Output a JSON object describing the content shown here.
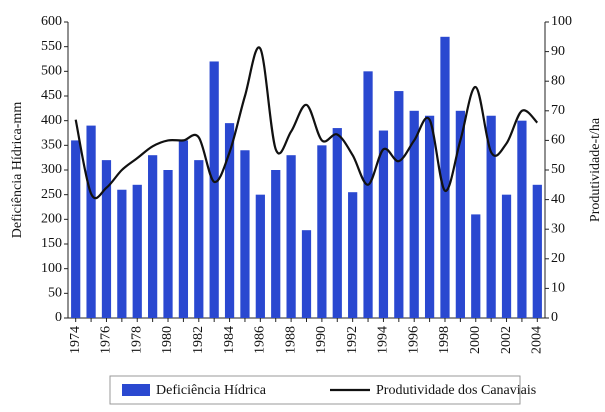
{
  "chart_data": {
    "type": "bar_line",
    "ylabel": "Deficiência Hídrica-mm",
    "y2label": "Produtividade-t/ha",
    "categories": [
      "1974",
      null,
      "1976",
      null,
      "1978",
      null,
      "1980",
      null,
      "1982",
      null,
      "1984",
      null,
      "1986",
      null,
      "1988",
      null,
      "1990",
      null,
      "1992",
      null,
      "1994",
      null,
      "1996",
      null,
      "1998",
      null,
      "2000",
      null,
      "2002",
      null,
      "2004"
    ],
    "series": [
      {
        "name": "Deficiência Hídrica",
        "type": "bar",
        "axis": "y",
        "color": "#2a48d0",
        "values": [
          360,
          390,
          320,
          260,
          270,
          330,
          300,
          360,
          320,
          520,
          395,
          340,
          250,
          300,
          330,
          178,
          350,
          385,
          255,
          500,
          380,
          460,
          420,
          410,
          570,
          420,
          210,
          410,
          250,
          400,
          270
        ]
      },
      {
        "name": "Produtividade dos Canaviais",
        "type": "line",
        "axis": "y2",
        "color": "#111111",
        "values": [
          67,
          42,
          44,
          50,
          54,
          58,
          60,
          60,
          61,
          46,
          56,
          75,
          91,
          57,
          63,
          72,
          60,
          62,
          55,
          45,
          57,
          53,
          60,
          67,
          43,
          60,
          78,
          56,
          59,
          70,
          66
        ]
      }
    ],
    "ylim": [
      0,
      600
    ],
    "yticks": [
      0,
      50,
      100,
      150,
      200,
      250,
      300,
      350,
      400,
      450,
      500,
      550,
      600
    ],
    "y2lim": [
      0,
      100
    ],
    "y2ticks": [
      0,
      10,
      20,
      30,
      40,
      50,
      60,
      70,
      80,
      90,
      100
    ],
    "legend": "bottom"
  }
}
